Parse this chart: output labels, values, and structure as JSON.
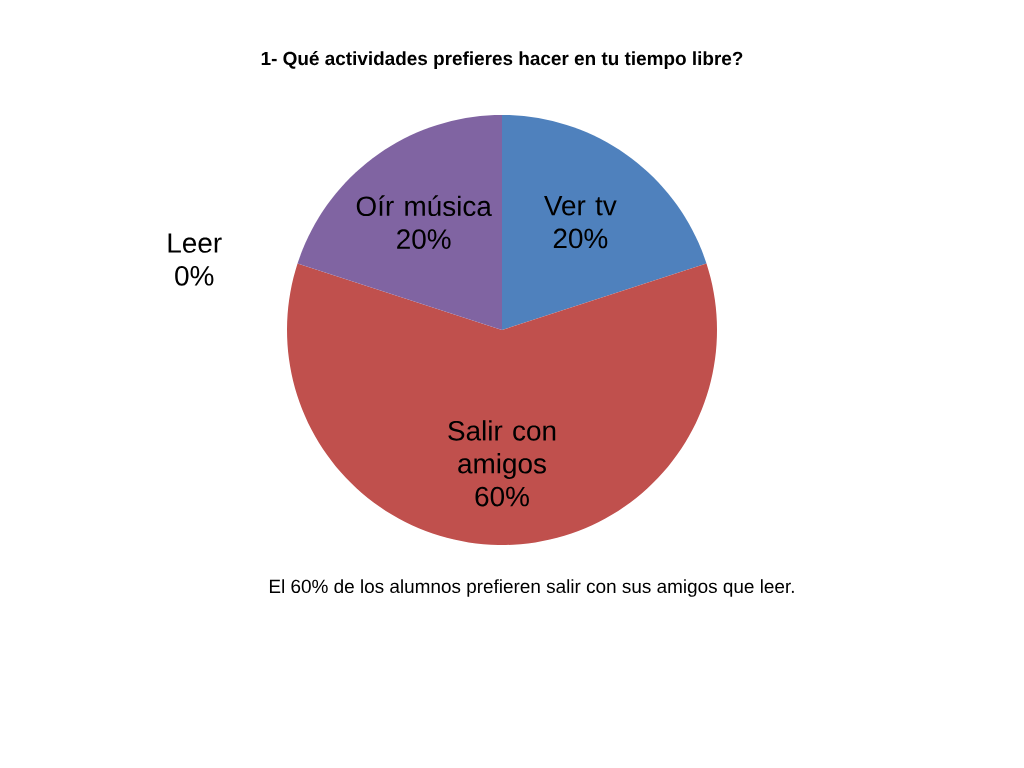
{
  "chart_data": {
    "type": "pie",
    "title": "1- Qué actividades prefieres hacer en tu tiempo libre?",
    "categories": [
      "Ver tv",
      "Salir con amigos",
      "Leer",
      "Oír música"
    ],
    "values": [
      20,
      60,
      0,
      20
    ],
    "value_labels": [
      "20%",
      "60%",
      "0%",
      "20%"
    ],
    "colors": [
      "#4f81bd",
      "#c0504d",
      null,
      "#8064a2"
    ],
    "annotations": [
      "El 60% de los alumnos prefieren salir con sus amigos que leer."
    ]
  }
}
